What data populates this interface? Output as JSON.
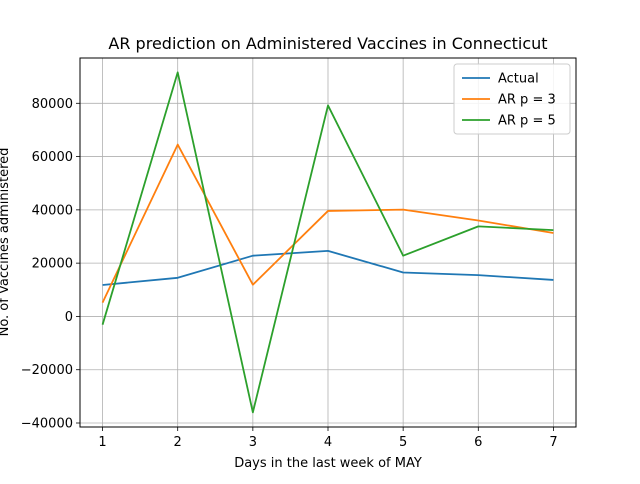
{
  "chart_data": {
    "type": "line",
    "title": "AR prediction on Administered Vaccines in Connecticut",
    "xlabel": "Days in the last week of MAY",
    "ylabel": "No. of Vaccines administered",
    "x": [
      1,
      2,
      3,
      4,
      5,
      6,
      7
    ],
    "xlim": [
      0.7,
      7.3
    ],
    "ylim": [
      -41500,
      97000
    ],
    "xticks": [
      "1",
      "2",
      "3",
      "4",
      "5",
      "6",
      "7"
    ],
    "yticks": [
      -40000,
      -20000,
      0,
      20000,
      40000,
      60000,
      80000
    ],
    "ytick_labels": [
      "−40000",
      "−20000",
      "0",
      "20000",
      "40000",
      "60000",
      "80000"
    ],
    "grid": true,
    "legend_position": "top-right",
    "series": [
      {
        "name": "Actual",
        "color": "#1f77b4",
        "values": [
          11800,
          14500,
          22800,
          24600,
          16500,
          15500,
          13700
        ]
      },
      {
        "name": "AR p = 3",
        "color": "#ff7f0e",
        "values": [
          5200,
          64500,
          11900,
          39600,
          40100,
          36000,
          31300
        ]
      },
      {
        "name": "AR p = 5",
        "color": "#2ca02c",
        "values": [
          -3100,
          91600,
          -36000,
          79200,
          22800,
          33800,
          32400
        ]
      }
    ]
  }
}
